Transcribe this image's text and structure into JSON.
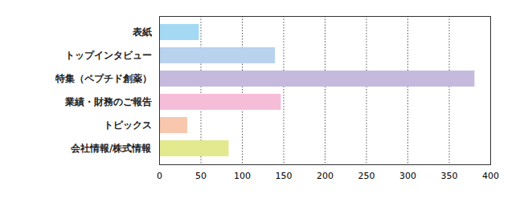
{
  "chart_data": {
    "type": "bar",
    "orientation": "horizontal",
    "categories": [
      "表紙",
      "トップインタビュー",
      "特集（ペプチド創薬）",
      "業績・財務のご報告",
      "トピックス",
      "会社情報/株式情報"
    ],
    "values": [
      48,
      140,
      381,
      147,
      34,
      84
    ],
    "colors": [
      "#a3d9f3",
      "#b9d2ee",
      "#c5bade",
      "#f6bdd8",
      "#f9c7ae",
      "#e3e98e"
    ],
    "xlim": [
      0,
      400
    ],
    "xticks": [
      0,
      50,
      100,
      150,
      200,
      250,
      300,
      350,
      400
    ],
    "grid": true
  }
}
